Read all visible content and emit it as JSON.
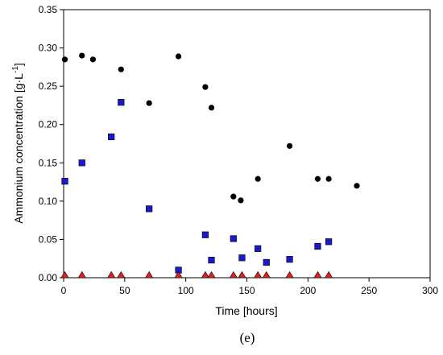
{
  "chart_data": {
    "type": "scatter",
    "xlabel": "Time [hours]",
    "ylabel": {
      "base": "Ammonium concentration [g·L",
      "sup": "-1",
      "close": "]"
    },
    "panel_label": "(e)",
    "xlim": [
      0,
      300
    ],
    "ylim": [
      0,
      0.35
    ],
    "xticks": [
      0,
      50,
      100,
      150,
      200,
      250,
      300
    ],
    "xtick_labels": [
      "0",
      "50",
      "100",
      "150",
      "200",
      "250",
      "300"
    ],
    "yticks": [
      0,
      0.05,
      0.1,
      0.15,
      0.2,
      0.25,
      0.3,
      0.35
    ],
    "ytick_labels": [
      "0.00",
      "0.05",
      "0.10",
      "0.15",
      "0.20",
      "0.25",
      "0.30",
      "0.35"
    ],
    "grid": false,
    "series": [
      {
        "marker": "circle",
        "color": "#000000",
        "x": [
          1,
          15,
          24,
          47,
          70,
          94,
          116,
          121,
          139,
          145,
          159,
          185,
          208,
          217,
          240
        ],
        "y": [
          0.285,
          0.29,
          0.285,
          0.272,
          0.228,
          0.289,
          0.249,
          0.222,
          0.106,
          0.101,
          0.129,
          0.172,
          0.129,
          0.129,
          0.12
        ]
      },
      {
        "marker": "square",
        "color": "#1a1acc",
        "x": [
          1,
          15,
          39,
          47,
          70,
          94,
          116,
          121,
          139,
          146,
          159,
          166,
          185,
          208,
          217
        ],
        "y": [
          0.126,
          0.15,
          0.184,
          0.229,
          0.09,
          0.01,
          0.056,
          0.023,
          0.051,
          0.026,
          0.038,
          0.02,
          0.024,
          0.041,
          0.047
        ]
      },
      {
        "marker": "triangle",
        "color": "#e02020",
        "x": [
          1,
          15,
          39,
          47,
          70,
          94,
          116,
          121,
          139,
          146,
          159,
          166,
          185,
          208,
          217
        ],
        "y": [
          0,
          0,
          0,
          0,
          0,
          0,
          0,
          0,
          0,
          0,
          0,
          0,
          0,
          0,
          0
        ]
      }
    ]
  }
}
